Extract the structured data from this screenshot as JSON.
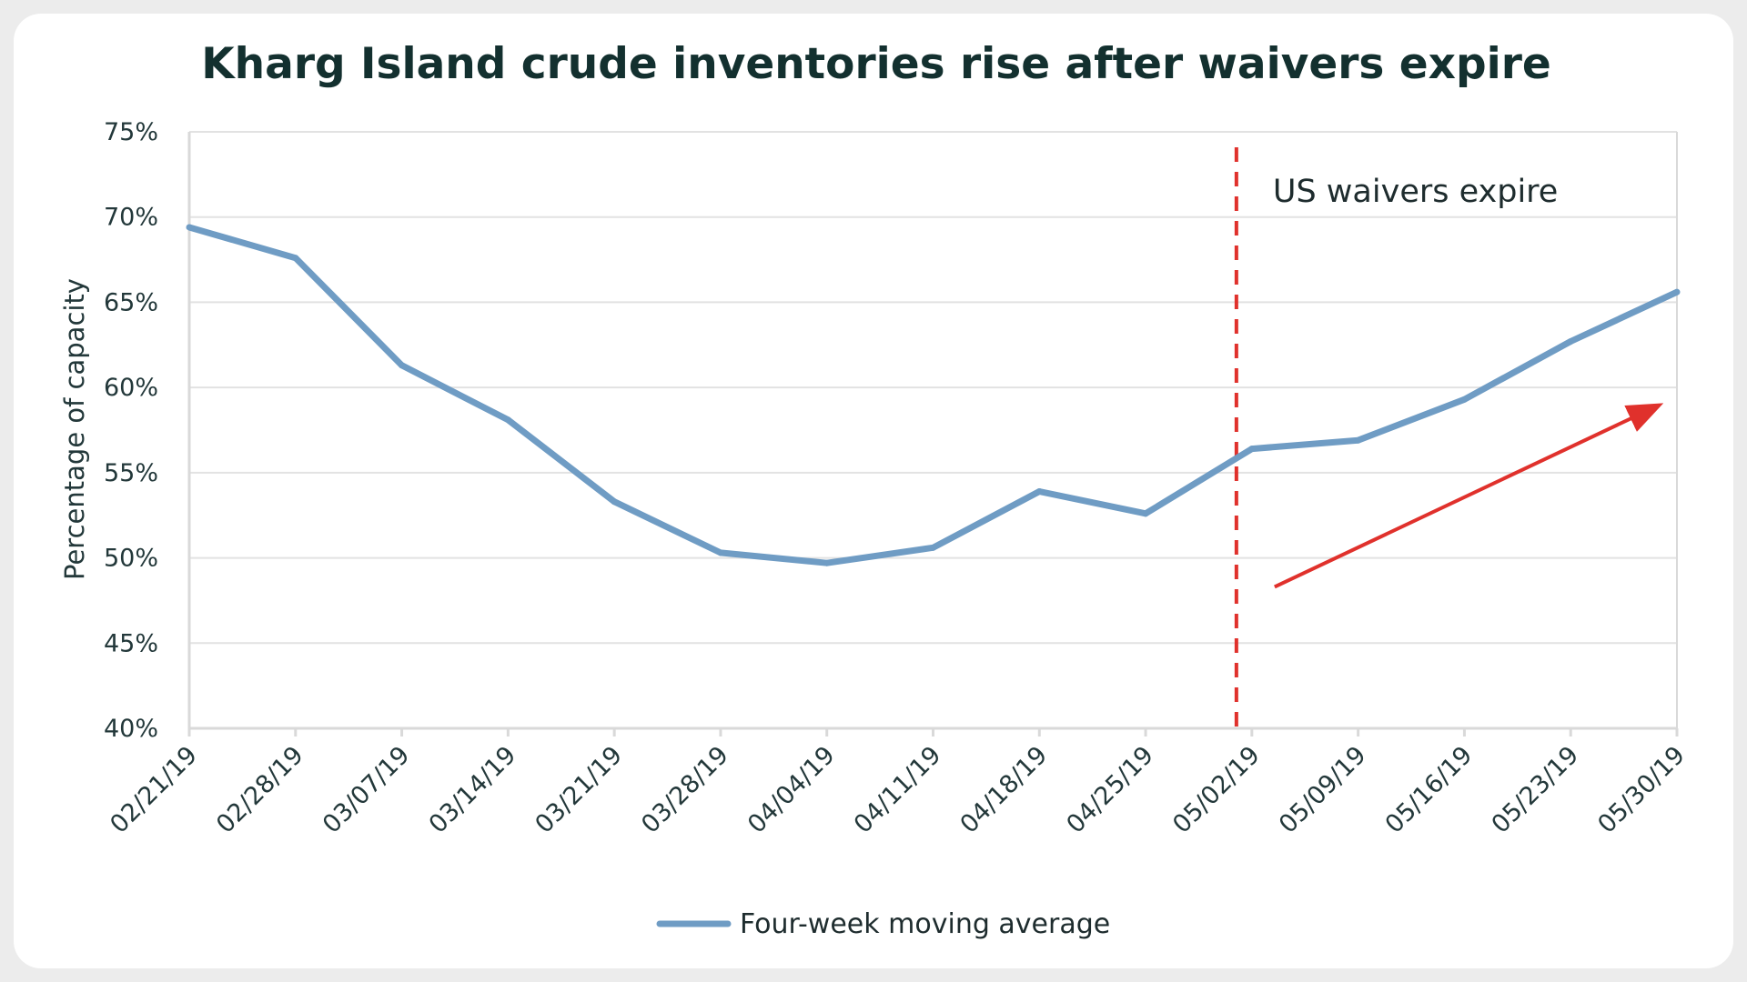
{
  "colors": {
    "series": "#6f9cc4",
    "annotation": "#e0312c",
    "grid": "#e2e2e2",
    "frame": "#d9d9d9",
    "title": "#13302f",
    "text": "#23383a"
  },
  "chart_data": {
    "type": "line",
    "title": "Kharg Island crude inventories rise after waivers expire",
    "xlabel": "",
    "ylabel": "Percentage of capacity",
    "ylim": [
      40,
      75
    ],
    "y_ticks": [
      40,
      45,
      50,
      55,
      60,
      65,
      70,
      75
    ],
    "y_tick_labels": [
      "40%",
      "45%",
      "50%",
      "55%",
      "60%",
      "65%",
      "70%",
      "75%"
    ],
    "grid": true,
    "legend_position": "bottom-center",
    "categories": [
      "02/21/19",
      "02/28/19",
      "03/07/19",
      "03/14/19",
      "03/21/19",
      "03/28/19",
      "04/04/19",
      "04/11/19",
      "04/18/19",
      "04/25/19",
      "05/02/19",
      "05/09/19",
      "05/16/19",
      "05/23/19",
      "05/30/19"
    ],
    "series": [
      {
        "name": "Four-week moving average",
        "values": [
          69.4,
          67.6,
          61.3,
          58.1,
          53.3,
          50.3,
          49.7,
          50.6,
          53.9,
          52.6,
          56.4,
          56.9,
          59.3,
          62.7,
          65.6
        ]
      }
    ],
    "annotations": [
      {
        "type": "vertical-dashed-line",
        "x": "05/02/19",
        "label": "US waivers expire"
      },
      {
        "type": "arrow",
        "direction": "up-right",
        "from": {
          "x": "05/02/19",
          "y": 48.3
        },
        "to": {
          "x": "05/30/19",
          "y": 58.9
        }
      }
    ]
  }
}
